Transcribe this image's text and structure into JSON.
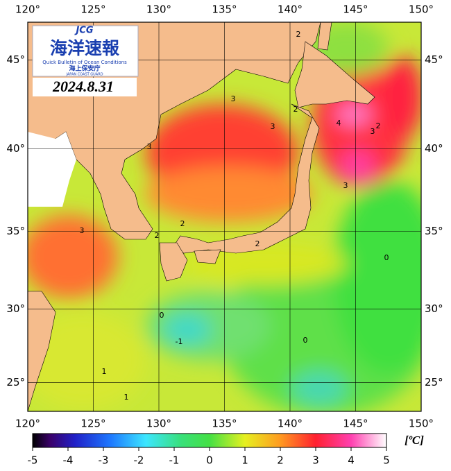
{
  "header": {
    "logo_abbr": "JCG",
    "logo_title": "海洋速報",
    "logo_subtitle": "Quick Bulletin of Ocean Conditions",
    "logo_agency": "海上保安庁",
    "logo_agency_en": "JAPAN COAST GUARD",
    "date": "2024.8.31"
  },
  "chart_data": {
    "type": "map",
    "projection": "mercator",
    "grid": true,
    "xlim": [
      120,
      150
    ],
    "ylim": [
      23,
      47
    ],
    "xticks": [
      {
        "value": 120,
        "label": "120°"
      },
      {
        "value": 125,
        "label": "125°"
      },
      {
        "value": 130,
        "label": "130°"
      },
      {
        "value": 135,
        "label": "135°"
      },
      {
        "value": 140,
        "label": "140°"
      },
      {
        "value": 145,
        "label": "145°"
      },
      {
        "value": 150,
        "label": "150°"
      }
    ],
    "yticks": [
      {
        "value": 25,
        "label": "25°"
      },
      {
        "value": 30,
        "label": "30°"
      },
      {
        "value": 35,
        "label": "35°"
      },
      {
        "value": 40,
        "label": "40°"
      },
      {
        "value": 45,
        "label": "45°"
      }
    ],
    "colorbar": {
      "lim": [
        -5,
        5
      ],
      "ticks": [
        -5,
        -4,
        -3,
        -2,
        -1,
        0,
        1,
        2,
        3,
        4,
        5
      ],
      "unit": "[ºC]"
    },
    "contour_labels": [
      "2",
      "3",
      "3",
      "3",
      "2",
      "2",
      "3",
      "2",
      "0",
      "0",
      "-1",
      "0",
      "1",
      "1",
      "4",
      "3",
      "2",
      "3",
      "2"
    ]
  }
}
